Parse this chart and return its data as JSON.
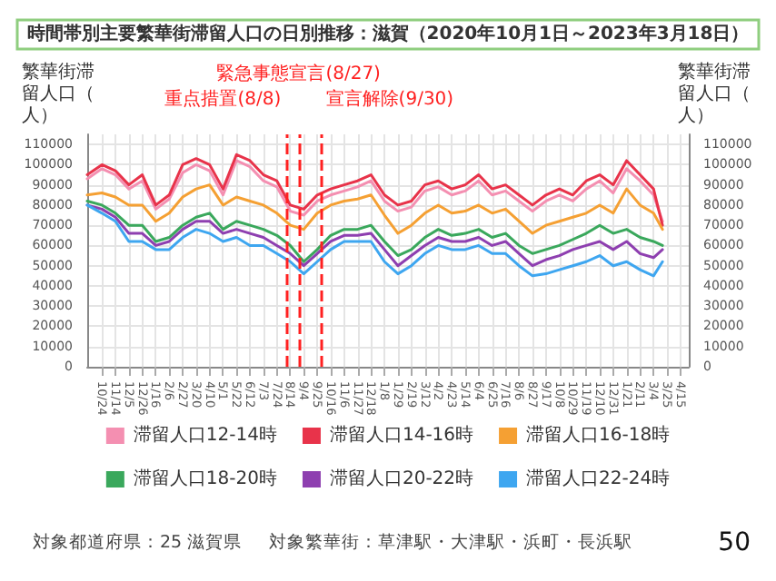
{
  "chart_data": {
    "type": "line",
    "title": "時間帯別主要繁華街滞留人口の日別推移：滋賀（2020年10月1日～2023年3月18日）",
    "ylabel": "繁華街滞留人口（人）",
    "y2label": "繁華街滞留人口（人）",
    "x": [
      "2020-10-01",
      "2020-10-24",
      "2020-11-14",
      "2020-12-05",
      "2020-12-26",
      "2021-01-16",
      "2021-02-06",
      "2021-02-27",
      "2021-03-20",
      "2021-04-10",
      "2021-05-01",
      "2021-05-22",
      "2021-06-12",
      "2021-07-03",
      "2021-07-24",
      "2021-08-14",
      "2021-09-04",
      "2021-09-25",
      "2021-10-16",
      "2021-11-06",
      "2021-11-27",
      "2021-12-18",
      "2022-01-08",
      "2022-01-29",
      "2022-02-19",
      "2022-03-12",
      "2022-04-02",
      "2022-04-23",
      "2022-05-14",
      "2022-06-04",
      "2022-06-25",
      "2022-07-16",
      "2022-08-06",
      "2022-08-27",
      "2022-09-17",
      "2022-10-08",
      "2022-10-29",
      "2022-11-19",
      "2022-12-10",
      "2022-12-31",
      "2023-01-21",
      "2023-02-11",
      "2023-03-04",
      "2023-03-18"
    ],
    "series": [
      {
        "name": "滞留人口12-14時",
        "color": "#f48fb1",
        "values": [
          93000,
          98000,
          95000,
          88000,
          92000,
          78000,
          83000,
          96000,
          100000,
          97000,
          85000,
          102000,
          99000,
          92000,
          89000,
          77000,
          75000,
          82000,
          85000,
          87000,
          89000,
          92000,
          82000,
          77000,
          79000,
          87000,
          89000,
          85000,
          87000,
          92000,
          85000,
          87000,
          82000,
          77000,
          82000,
          85000,
          82000,
          88000,
          92000,
          86000,
          98000,
          92000,
          85000,
          72000
        ]
      },
      {
        "name": "滞留人口14-16時",
        "color": "#e8334a",
        "values": [
          95000,
          100000,
          97000,
          90000,
          95000,
          80000,
          85000,
          100000,
          103000,
          100000,
          88000,
          105000,
          102000,
          95000,
          92000,
          80000,
          78000,
          85000,
          88000,
          90000,
          92000,
          95000,
          85000,
          80000,
          82000,
          90000,
          92000,
          88000,
          90000,
          95000,
          88000,
          90000,
          85000,
          80000,
          85000,
          88000,
          85000,
          92000,
          95000,
          90000,
          102000,
          95000,
          88000,
          70000
        ]
      },
      {
        "name": "滞留人口16-18時",
        "color": "#f5a033",
        "values": [
          85000,
          86000,
          84000,
          80000,
          80000,
          72000,
          76000,
          84000,
          88000,
          90000,
          80000,
          84000,
          82000,
          80000,
          76000,
          70000,
          68000,
          76000,
          80000,
          82000,
          83000,
          85000,
          75000,
          66000,
          70000,
          76000,
          80000,
          76000,
          77000,
          80000,
          76000,
          78000,
          72000,
          66000,
          70000,
          72000,
          74000,
          76000,
          80000,
          76000,
          88000,
          80000,
          76000,
          68000
        ]
      },
      {
        "name": "滞留人口18-20時",
        "color": "#3aa85c",
        "values": [
          82000,
          80000,
          76000,
          70000,
          70000,
          62000,
          64000,
          70000,
          74000,
          76000,
          68000,
          72000,
          70000,
          68000,
          65000,
          60000,
          52000,
          58000,
          65000,
          68000,
          68000,
          70000,
          62000,
          55000,
          58000,
          64000,
          68000,
          65000,
          66000,
          68000,
          64000,
          66000,
          60000,
          56000,
          58000,
          60000,
          63000,
          66000,
          70000,
          66000,
          68000,
          64000,
          62000,
          60000
        ]
      },
      {
        "name": "滞留人口20-22時",
        "color": "#8e3fb0",
        "values": [
          80000,
          78000,
          74000,
          66000,
          66000,
          60000,
          62000,
          68000,
          72000,
          72000,
          66000,
          68000,
          66000,
          64000,
          60000,
          56000,
          50000,
          56000,
          62000,
          65000,
          65000,
          66000,
          58000,
          50000,
          55000,
          60000,
          64000,
          62000,
          62000,
          64000,
          60000,
          62000,
          56000,
          50000,
          53000,
          55000,
          58000,
          60000,
          62000,
          58000,
          62000,
          56000,
          54000,
          58000
        ]
      },
      {
        "name": "滞留人口22-24時",
        "color": "#3ea6f0",
        "values": [
          80000,
          76000,
          72000,
          62000,
          62000,
          58000,
          58000,
          64000,
          68000,
          66000,
          62000,
          64000,
          60000,
          60000,
          56000,
          52000,
          46000,
          52000,
          58000,
          62000,
          62000,
          62000,
          52000,
          46000,
          50000,
          56000,
          60000,
          58000,
          58000,
          60000,
          56000,
          56000,
          50000,
          45000,
          46000,
          48000,
          50000,
          52000,
          55000,
          50000,
          52000,
          48000,
          45000,
          52000
        ]
      }
    ],
    "xlim": [
      "2020-10-01",
      "2023-04-28"
    ],
    "xticks": [
      {
        "value": "2020-10-24",
        "label": "10/24"
      },
      {
        "value": "2020-11-14",
        "label": "11/14"
      },
      {
        "value": "2020-12-05",
        "label": "12/5"
      },
      {
        "value": "2020-12-26",
        "label": "12/26"
      },
      {
        "value": "2021-01-16",
        "label": "1/16"
      },
      {
        "value": "2021-02-06",
        "label": "2/6"
      },
      {
        "value": "2021-02-27",
        "label": "2/27"
      },
      {
        "value": "2021-03-20",
        "label": "3/20"
      },
      {
        "value": "2021-04-10",
        "label": "4/10"
      },
      {
        "value": "2021-05-01",
        "label": "5/1"
      },
      {
        "value": "2021-05-22",
        "label": "5/22"
      },
      {
        "value": "2021-06-12",
        "label": "6/12"
      },
      {
        "value": "2021-07-03",
        "label": "7/3"
      },
      {
        "value": "2021-07-24",
        "label": "7/24"
      },
      {
        "value": "2021-08-14",
        "label": "8/14"
      },
      {
        "value": "2021-09-04",
        "label": "9/4"
      },
      {
        "value": "2021-09-25",
        "label": "9/25"
      },
      {
        "value": "2021-10-16",
        "label": "10/16"
      },
      {
        "value": "2021-11-06",
        "label": "11/6"
      },
      {
        "value": "2021-11-27",
        "label": "11/27"
      },
      {
        "value": "2021-12-18",
        "label": "12/18"
      },
      {
        "value": "2022-01-08",
        "label": "1/8"
      },
      {
        "value": "2022-01-29",
        "label": "1/29"
      },
      {
        "value": "2022-02-19",
        "label": "2/19"
      },
      {
        "value": "2022-03-12",
        "label": "3/12"
      },
      {
        "value": "2022-04-02",
        "label": "4/2"
      },
      {
        "value": "2022-04-23",
        "label": "4/23"
      },
      {
        "value": "2022-05-14",
        "label": "5/14"
      },
      {
        "value": "2022-06-04",
        "label": "6/4"
      },
      {
        "value": "2022-06-25",
        "label": "6/25"
      },
      {
        "value": "2022-07-16",
        "label": "7/16"
      },
      {
        "value": "2022-08-06",
        "label": "8/6"
      },
      {
        "value": "2022-08-27",
        "label": "8/27"
      },
      {
        "value": "2022-09-17",
        "label": "9/17"
      },
      {
        "value": "2022-10-08",
        "label": "10/8"
      },
      {
        "value": "2022-10-29",
        "label": "10/29"
      },
      {
        "value": "2022-11-19",
        "label": "11/19"
      },
      {
        "value": "2022-12-10",
        "label": "12/10"
      },
      {
        "value": "2022-12-31",
        "label": "12/31"
      },
      {
        "value": "2023-01-21",
        "label": "1/21"
      },
      {
        "value": "2023-02-11",
        "label": "2/11"
      },
      {
        "value": "2023-03-04",
        "label": "3/4"
      },
      {
        "value": "2023-03-25",
        "label": "3/25"
      },
      {
        "value": "2023-04-15",
        "label": "4/15"
      }
    ],
    "ylim": [
      0,
      115000
    ],
    "yticks": [
      0,
      10000,
      20000,
      30000,
      40000,
      50000,
      60000,
      70000,
      80000,
      90000,
      100000,
      110000
    ],
    "y2lim": [
      0,
      115000
    ],
    "y2ticks": [
      0,
      10000,
      20000,
      30000,
      40000,
      50000,
      60000,
      70000,
      80000,
      90000,
      100000,
      110000
    ],
    "ref_lines": [
      {
        "axis": "x",
        "value": "2021-08-08",
        "label": "重点措置(8/8)",
        "color": "#ff2020",
        "line_style": "dashed"
      },
      {
        "axis": "x",
        "value": "2021-08-27",
        "label": "緊急事態宣言(8/27)",
        "color": "#ff2020",
        "line_style": "dashed"
      },
      {
        "axis": "x",
        "value": "2021-09-30",
        "label": "宣言解除(9/30)",
        "color": "#ff2020",
        "line_style": "dashed"
      }
    ],
    "annotations": [
      "対象都道府県：25 滋賀県",
      "対象繁華街：草津駅・大津駅・浜町・長浜駅",
      "50"
    ],
    "grid": true,
    "legend": "bottom",
    "marker": "none",
    "line_style": "solid"
  }
}
